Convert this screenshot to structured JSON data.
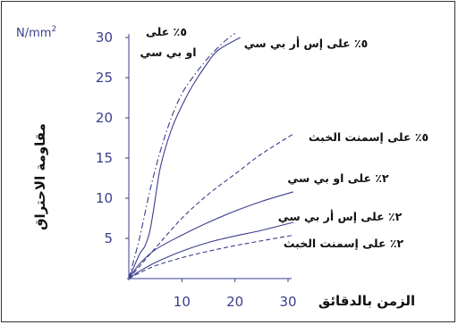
{
  "chart_data": {
    "type": "line",
    "y_unit": "N/mm",
    "y_unit_sup": "2",
    "ylabel": "مقاومة الاحتراق",
    "xlabel": "الزمن بالدقائق",
    "ylim": [
      0,
      30
    ],
    "xlim": [
      0,
      30
    ],
    "y_ticks": [
      "5",
      "10",
      "15",
      "20",
      "25",
      "30"
    ],
    "x_ticks": [
      "10",
      "20",
      "30"
    ],
    "grid": false,
    "series": [
      {
        "name": "٥٪ على او بي سي",
        "style": "solid",
        "x": [
          0,
          2,
          3,
          4,
          5,
          6,
          8,
          10,
          12,
          15,
          17,
          21
        ],
        "y": [
          0,
          3,
          4,
          6,
          10,
          14,
          18.5,
          21.5,
          24,
          27,
          28.5,
          30
        ]
      },
      {
        "name": "٥٪ على إس أر بي سي",
        "style": "dashdot",
        "x": [
          0,
          2,
          4,
          6,
          8,
          10,
          12,
          15,
          18,
          20
        ],
        "y": [
          0,
          5,
          11,
          16,
          20,
          23,
          25,
          27.5,
          29.5,
          30.5
        ]
      },
      {
        "name": "٥٪ على إسمنت الخبث",
        "style": "dashed",
        "x": [
          0,
          2,
          5,
          10,
          15,
          20,
          25,
          31
        ],
        "y": [
          0,
          1.5,
          3.8,
          7.5,
          10.5,
          13,
          15.5,
          18
        ]
      },
      {
        "name": "٢٪ على او بي سي",
        "style": "solid",
        "x": [
          0,
          2,
          5,
          10,
          15,
          20,
          25,
          31
        ],
        "y": [
          0,
          1.8,
          3.6,
          5.4,
          7,
          8.4,
          9.6,
          10.8
        ]
      },
      {
        "name": "٢٪ على إس أر بي سي",
        "style": "solid",
        "x": [
          0,
          2,
          5,
          10,
          15,
          20,
          25,
          31
        ],
        "y": [
          0,
          0.9,
          2,
          3.4,
          4.5,
          5.3,
          6,
          7
        ]
      },
      {
        "name": "٢٪ على إسمنت الخبث",
        "style": "dashed",
        "x": [
          0,
          2,
          5,
          10,
          15,
          20,
          25,
          31
        ],
        "y": [
          0,
          0.7,
          1.6,
          2.6,
          3.4,
          4.1,
          4.7,
          5.4
        ]
      }
    ]
  },
  "colors": {
    "line": "#3b3d8c",
    "tick_text": "#3b3d8c",
    "label_text": "#111111"
  }
}
